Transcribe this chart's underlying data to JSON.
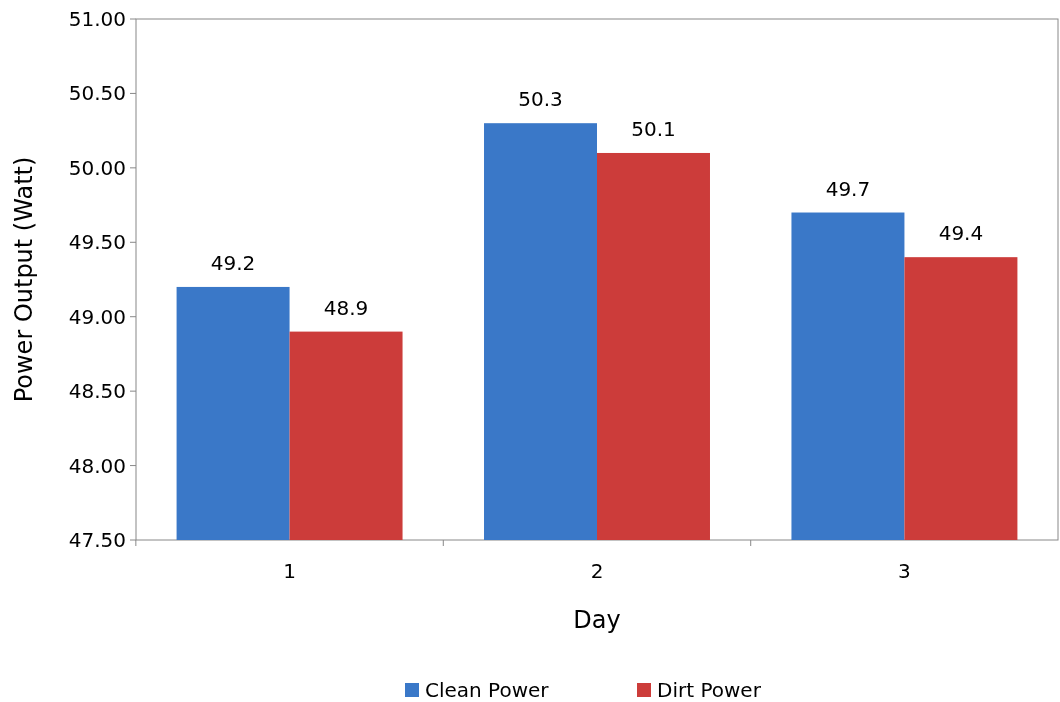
{
  "chart_data": {
    "type": "bar",
    "xlabel": "Day",
    "ylabel": "Power Output (Watt)",
    "categories": [
      "1",
      "2",
      "3"
    ],
    "series": [
      {
        "name": "Clean Power",
        "color": "#3a78c8",
        "values": [
          49.2,
          50.3,
          49.7
        ]
      },
      {
        "name": "Dirt Power",
        "color": "#cc3c3a",
        "values": [
          48.9,
          50.1,
          49.4
        ]
      }
    ],
    "ylim": [
      47.5,
      51
    ],
    "yticks": [
      {
        "value": 47.5,
        "label": "47.50"
      },
      {
        "value": 48,
        "label": "48.00"
      },
      {
        "value": 48.5,
        "label": "48.50"
      },
      {
        "value": 49,
        "label": "49.00"
      },
      {
        "value": 49.5,
        "label": "49.50"
      },
      {
        "value": 50,
        "label": "50.00"
      },
      {
        "value": 50.5,
        "label": "50.50"
      },
      {
        "value": 51,
        "label": "51.00"
      }
    ],
    "data_labels": true,
    "legend": "bottom",
    "grid": false
  }
}
